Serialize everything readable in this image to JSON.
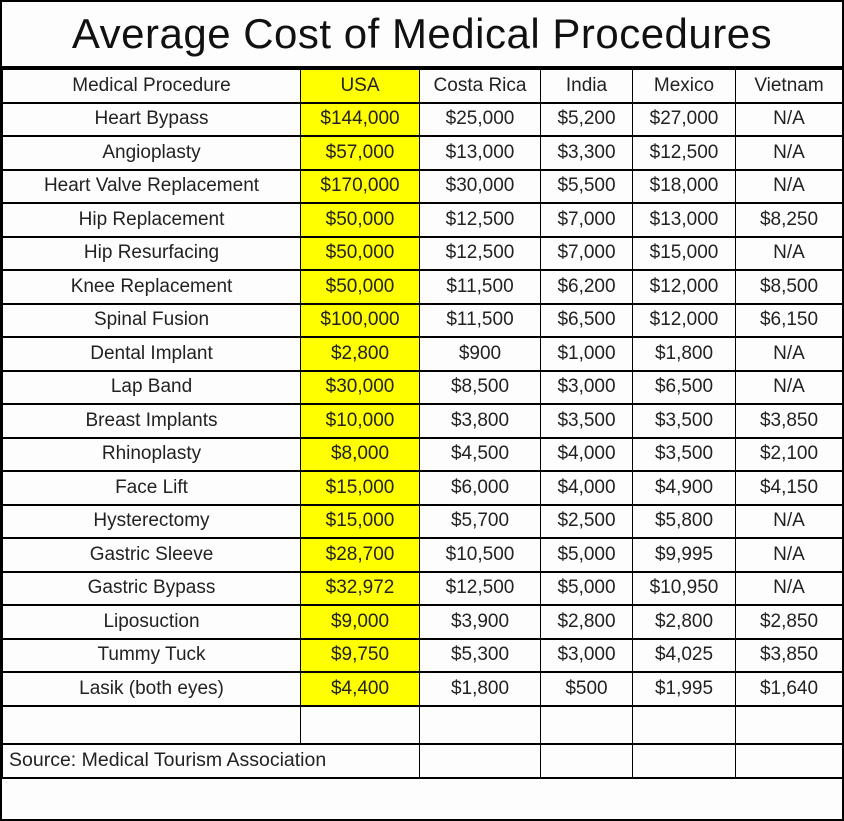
{
  "title": "Average Cost of Medical Procedures",
  "source_note": "Source: Medical Tourism Association",
  "colors": {
    "usa_highlight": "#ffff00",
    "border": "#000000",
    "text": "#1a1a1a",
    "background": "#fdfdfd"
  },
  "chart_data": {
    "type": "table",
    "title": "Average Cost of Medical Procedures",
    "columns": [
      "Medical Procedure",
      "USA",
      "Costa Rica",
      "India",
      "Mexico",
      "Vietnam"
    ],
    "highlighted_column": "USA",
    "rows": [
      [
        "Heart Bypass",
        "$144,000",
        "$25,000",
        "$5,200",
        "$27,000",
        "N/A"
      ],
      [
        "Angioplasty",
        "$57,000",
        "$13,000",
        "$3,300",
        "$12,500",
        "N/A"
      ],
      [
        "Heart Valve Replacement",
        "$170,000",
        "$30,000",
        "$5,500",
        "$18,000",
        "N/A"
      ],
      [
        "Hip Replacement",
        "$50,000",
        "$12,500",
        "$7,000",
        "$13,000",
        "$8,250"
      ],
      [
        "Hip Resurfacing",
        "$50,000",
        "$12,500",
        "$7,000",
        "$15,000",
        "N/A"
      ],
      [
        "Knee Replacement",
        "$50,000",
        "$11,500",
        "$6,200",
        "$12,000",
        "$8,500"
      ],
      [
        "Spinal Fusion",
        "$100,000",
        "$11,500",
        "$6,500",
        "$12,000",
        "$6,150"
      ],
      [
        "Dental Implant",
        "$2,800",
        "$900",
        "$1,000",
        "$1,800",
        "N/A"
      ],
      [
        "Lap Band",
        "$30,000",
        "$8,500",
        "$3,000",
        "$6,500",
        "N/A"
      ],
      [
        "Breast Implants",
        "$10,000",
        "$3,800",
        "$3,500",
        "$3,500",
        "$3,850"
      ],
      [
        "Rhinoplasty",
        "$8,000",
        "$4,500",
        "$4,000",
        "$3,500",
        "$2,100"
      ],
      [
        "Face Lift",
        "$15,000",
        "$6,000",
        "$4,000",
        "$4,900",
        "$4,150"
      ],
      [
        "Hysterectomy",
        "$15,000",
        "$5,700",
        "$2,500",
        "$5,800",
        "N/A"
      ],
      [
        "Gastric Sleeve",
        "$28,700",
        "$10,500",
        "$5,000",
        "$9,995",
        "N/A"
      ],
      [
        "Gastric Bypass",
        "$32,972",
        "$12,500",
        "$5,000",
        "$10,950",
        "N/A"
      ],
      [
        "Liposuction",
        "$9,000",
        "$3,900",
        "$2,800",
        "$2,800",
        "$2,850"
      ],
      [
        "Tummy Tuck",
        "$9,750",
        "$5,300",
        "$3,000",
        "$4,025",
        "$3,850"
      ],
      [
        "Lasik (both eyes)",
        "$4,400",
        "$1,800",
        "$500",
        "$1,995",
        "$1,640"
      ]
    ],
    "source": "Source: Medical Tourism Association"
  }
}
